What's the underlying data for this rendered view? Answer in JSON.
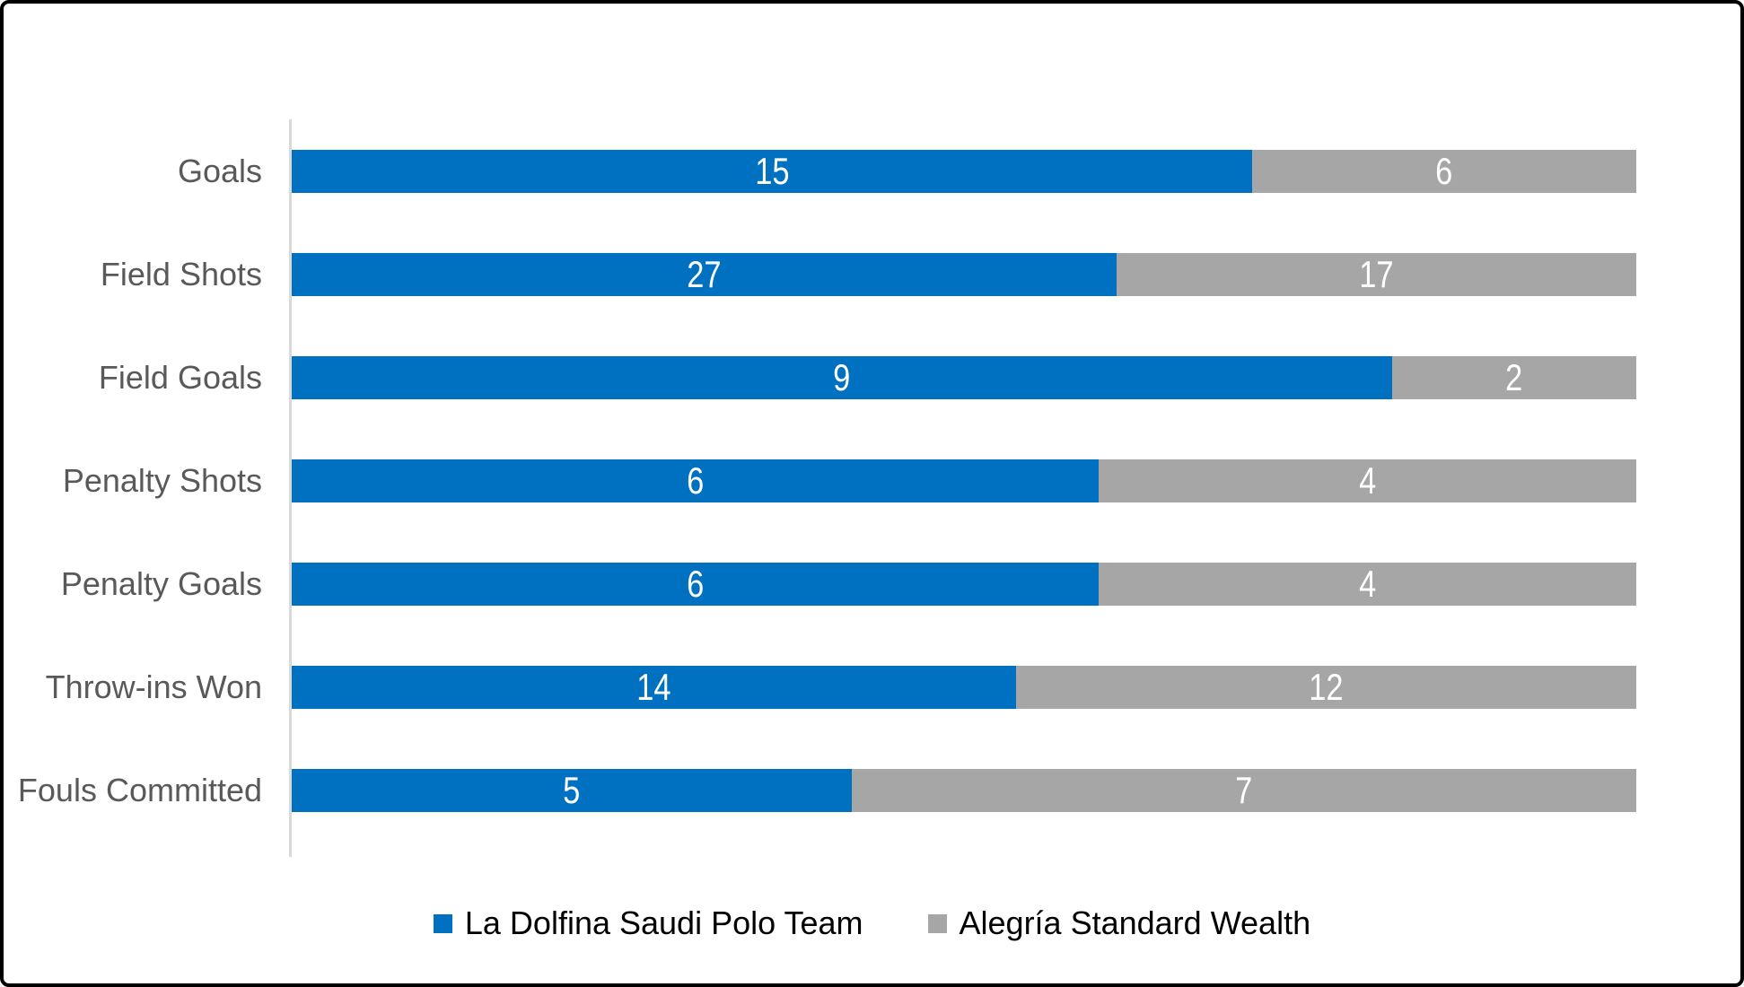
{
  "chart_data": {
    "type": "bar",
    "orientation": "horizontal",
    "stacked": true,
    "percent_stacked": true,
    "title": "",
    "xlabel": "",
    "ylabel": "",
    "grid": false,
    "legend_position": "bottom",
    "categories": [
      "Goals",
      "Field Shots",
      "Field Goals",
      "Penalty Shots",
      "Penalty Goals",
      "Throw-ins Won",
      "Fouls Committed"
    ],
    "series": [
      {
        "name": "La Dolfina Saudi Polo Team",
        "color": "#0070C0",
        "values": [
          15,
          27,
          9,
          6,
          6,
          14,
          5
        ]
      },
      {
        "name": "Alegría Standard Wealth",
        "color": "#A6A6A6",
        "values": [
          6,
          17,
          2,
          4,
          4,
          12,
          7
        ]
      }
    ],
    "value_label_style": "inside-center-white",
    "axis_line_color": "#D9D9D9",
    "category_label_color": "#595959",
    "background_color": "#FFFFFF",
    "border_color": "#000000"
  },
  "legend": {
    "items": [
      {
        "label": "La Dolfina Saudi Polo Team",
        "color": "#0070C0"
      },
      {
        "label": "Alegría Standard Wealth",
        "color": "#A6A6A6"
      }
    ]
  }
}
